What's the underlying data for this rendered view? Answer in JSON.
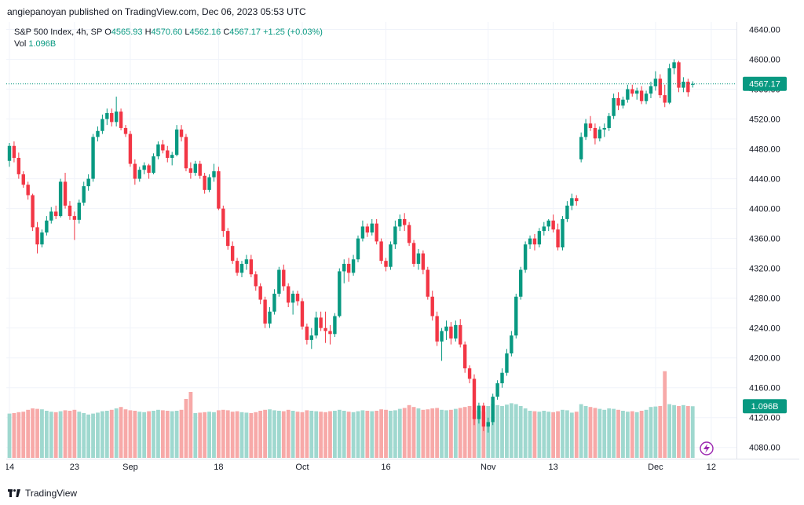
{
  "publish_line": "angiepanoyan published on TradingView.com, Dec 06, 2023 05:53 UTC",
  "legend": {
    "symbol": "S&P 500 Index, 4h, SP",
    "open_label": "O",
    "open": "4565.93",
    "high_label": "H",
    "high": "4570.60",
    "low_label": "L",
    "low": "4562.16",
    "close_label": "C",
    "close": "4567.17",
    "change": "+1.25 (+0.03%)",
    "vol_label": "Vol",
    "vol": "1.096B"
  },
  "price_badge": "4567.17",
  "vol_badge": "1.096B",
  "footer_brand": "TradingView",
  "colors": {
    "up": "#089981",
    "down": "#f23645",
    "up_vol": "#9fd8cf",
    "down_vol": "#f7a9a8"
  },
  "chart_data": {
    "type": "candlestick",
    "title": "S&P 500 Index, 4h, SP",
    "y_ticks": [
      "4640.00",
      "4600.00",
      "4560.00",
      "4520.00",
      "4480.00",
      "4440.00",
      "4400.00",
      "4360.00",
      "4320.00",
      "4280.00",
      "4240.00",
      "4200.00",
      "4160.00",
      "4120.00",
      "4080.00"
    ],
    "ylim": [
      4065,
      4650
    ],
    "x_ticks": [
      {
        "label": "14",
        "bar": 0
      },
      {
        "label": "23",
        "bar": 14
      },
      {
        "label": "Sep",
        "bar": 26
      },
      {
        "label": "18",
        "bar": 45
      },
      {
        "label": "Oct",
        "bar": 63
      },
      {
        "label": "16",
        "bar": 81
      },
      {
        "label": "Nov",
        "bar": 103
      },
      {
        "label": "13",
        "bar": 117
      },
      {
        "label": "Dec",
        "bar": 139
      },
      {
        "label": "12",
        "bar": 151
      }
    ],
    "current_price": 4567.17,
    "volume_current": "1.096B",
    "candles": [
      [
        4464,
        4488,
        4456,
        4484,
        0.94
      ],
      [
        4484,
        4490,
        4462,
        4468,
        0.95
      ],
      [
        4468,
        4475,
        4440,
        4446,
        0.97
      ],
      [
        4446,
        4450,
        4428,
        4432,
        0.98
      ],
      [
        4432,
        4436,
        4412,
        4418,
        1.02
      ],
      [
        4418,
        4420,
        4370,
        4375,
        1.05
      ],
      [
        4375,
        4382,
        4340,
        4352,
        1.04
      ],
      [
        4352,
        4372,
        4348,
        4368,
        1.03
      ],
      [
        4368,
        4390,
        4364,
        4384,
        1.0
      ],
      [
        4384,
        4402,
        4380,
        4396,
        0.98
      ],
      [
        4396,
        4404,
        4386,
        4390,
        0.97
      ],
      [
        4390,
        4440,
        4388,
        4436,
        0.99
      ],
      [
        4436,
        4448,
        4400,
        4404,
        1.01
      ],
      [
        4404,
        4410,
        4385,
        4390,
        1.0
      ],
      [
        4390,
        4396,
        4358,
        4385,
        1.02
      ],
      [
        4385,
        4412,
        4380,
        4408,
        0.98
      ],
      [
        4408,
        4436,
        4404,
        4430,
        0.95
      ],
      [
        4430,
        4446,
        4424,
        4440,
        0.92
      ],
      [
        4440,
        4500,
        4436,
        4496,
        0.94
      ],
      [
        4496,
        4510,
        4490,
        4504,
        0.96
      ],
      [
        4504,
        4526,
        4500,
        4520,
        0.99
      ],
      [
        4520,
        4534,
        4512,
        4528,
        1.0
      ],
      [
        4528,
        4534,
        4510,
        4516,
        1.02
      ],
      [
        4516,
        4550,
        4510,
        4530,
        1.05
      ],
      [
        4530,
        4534,
        4505,
        4508,
        1.08
      ],
      [
        4508,
        4512,
        4496,
        4500,
        1.03
      ],
      [
        4500,
        4504,
        4456,
        4460,
        1.01
      ],
      [
        4460,
        4466,
        4432,
        4440,
        1.0
      ],
      [
        4440,
        4456,
        4436,
        4452,
        0.98
      ],
      [
        4452,
        4462,
        4446,
        4458,
        0.97
      ],
      [
        4458,
        4460,
        4440,
        4448,
        0.99
      ],
      [
        4448,
        4474,
        4446,
        4470,
        1.0
      ],
      [
        4470,
        4490,
        4466,
        4486,
        1.02
      ],
      [
        4486,
        4492,
        4474,
        4478,
        1.01
      ],
      [
        4478,
        4484,
        4462,
        4468,
        1.0
      ],
      [
        4468,
        4476,
        4458,
        4472,
        0.99
      ],
      [
        4472,
        4512,
        4470,
        4506,
        1.0
      ],
      [
        4506,
        4512,
        4490,
        4496,
        1.02
      ],
      [
        4496,
        4500,
        4450,
        4454,
        1.25
      ],
      [
        4454,
        4462,
        4440,
        4448,
        1.4
      ],
      [
        4448,
        4464,
        4444,
        4460,
        0.95
      ],
      [
        4460,
        4464,
        4440,
        4444,
        0.96
      ],
      [
        4444,
        4448,
        4420,
        4425,
        0.97
      ],
      [
        4425,
        4446,
        4422,
        4442,
        0.98
      ],
      [
        4442,
        4460,
        4436,
        4450,
        0.97
      ],
      [
        4450,
        4456,
        4398,
        4400,
        1.01
      ],
      [
        4400,
        4404,
        4362,
        4370,
        1.02
      ],
      [
        4370,
        4374,
        4345,
        4350,
        1.01
      ],
      [
        4350,
        4356,
        4326,
        4330,
        0.98
      ],
      [
        4330,
        4334,
        4310,
        4314,
        0.99
      ],
      [
        4314,
        4330,
        4308,
        4326,
        0.97
      ],
      [
        4326,
        4338,
        4318,
        4332,
        0.96
      ],
      [
        4332,
        4338,
        4308,
        4312,
        0.95
      ],
      [
        4312,
        4316,
        4290,
        4296,
        0.97
      ],
      [
        4296,
        4300,
        4272,
        4278,
        1.0
      ],
      [
        4278,
        4282,
        4240,
        4246,
        1.02
      ],
      [
        4246,
        4268,
        4240,
        4262,
        1.03
      ],
      [
        4262,
        4292,
        4258,
        4286,
        1.01
      ],
      [
        4286,
        4322,
        4282,
        4318,
        1.0
      ],
      [
        4318,
        4325,
        4290,
        4296,
        0.99
      ],
      [
        4296,
        4300,
        4268,
        4274,
        1.02
      ],
      [
        4274,
        4290,
        4258,
        4286,
        1.0
      ],
      [
        4286,
        4290,
        4270,
        4276,
        0.98
      ],
      [
        4276,
        4280,
        4238,
        4242,
        0.97
      ],
      [
        4242,
        4246,
        4218,
        4224,
        1.01
      ],
      [
        4224,
        4240,
        4212,
        4230,
        1.0
      ],
      [
        4230,
        4262,
        4226,
        4254,
        0.99
      ],
      [
        4254,
        4262,
        4236,
        4240,
        0.98
      ],
      [
        4240,
        4262,
        4220,
        4236,
        0.97
      ],
      [
        4236,
        4244,
        4218,
        4232,
        0.99
      ],
      [
        4232,
        4260,
        4228,
        4256,
        1.0
      ],
      [
        4256,
        4320,
        4254,
        4316,
        1.02
      ],
      [
        4316,
        4332,
        4300,
        4326,
        1.0
      ],
      [
        4326,
        4334,
        4302,
        4314,
        0.98
      ],
      [
        4314,
        4338,
        4310,
        4332,
        0.97
      ],
      [
        4332,
        4364,
        4328,
        4360,
        0.99
      ],
      [
        4360,
        4384,
        4356,
        4376,
        1.01
      ],
      [
        4376,
        4380,
        4362,
        4368,
        1.0
      ],
      [
        4368,
        4386,
        4364,
        4380,
        0.99
      ],
      [
        4380,
        4386,
        4352,
        4356,
        1.0
      ],
      [
        4356,
        4360,
        4326,
        4330,
        1.03
      ],
      [
        4330,
        4334,
        4316,
        4322,
        1.02
      ],
      [
        4322,
        4356,
        4318,
        4352,
        1.0
      ],
      [
        4352,
        4384,
        4346,
        4376,
        1.01
      ],
      [
        4376,
        4392,
        4370,
        4386,
        1.04
      ],
      [
        4386,
        4394,
        4370,
        4378,
        1.06
      ],
      [
        4378,
        4382,
        4350,
        4354,
        1.12
      ],
      [
        4354,
        4358,
        4322,
        4326,
        1.08
      ],
      [
        4326,
        4346,
        4318,
        4340,
        1.05
      ],
      [
        4340,
        4344,
        4312,
        4318,
        1.02
      ],
      [
        4318,
        4322,
        4278,
        4282,
        1.03
      ],
      [
        4282,
        4290,
        4250,
        4256,
        1.05
      ],
      [
        4256,
        4262,
        4216,
        4222,
        1.06
      ],
      [
        4222,
        4240,
        4196,
        4236,
        1.02
      ],
      [
        4236,
        4250,
        4224,
        4242,
        1.01
      ],
      [
        4242,
        4248,
        4218,
        4226,
        1.02
      ],
      [
        4226,
        4250,
        4222,
        4244,
        1.04
      ],
      [
        4244,
        4252,
        4214,
        4218,
        1.06
      ],
      [
        4218,
        4222,
        4180,
        4186,
        1.08
      ],
      [
        4186,
        4190,
        4166,
        4172,
        1.1
      ],
      [
        4172,
        4178,
        4110,
        4118,
        1.02
      ],
      [
        4118,
        4140,
        4112,
        4136,
        1.0
      ],
      [
        4136,
        4140,
        4102,
        4108,
        0.98
      ],
      [
        4108,
        4120,
        4100,
        4114,
        1.1
      ],
      [
        4114,
        4152,
        4110,
        4148,
        1.15
      ],
      [
        4148,
        4170,
        4144,
        4166,
        1.12
      ],
      [
        4166,
        4186,
        4160,
        4180,
        1.1
      ],
      [
        4180,
        4212,
        4176,
        4206,
        1.13
      ],
      [
        4206,
        4236,
        4202,
        4230,
        1.16
      ],
      [
        4230,
        4286,
        4226,
        4282,
        1.14
      ],
      [
        4282,
        4322,
        4278,
        4318,
        1.1
      ],
      [
        4318,
        4356,
        4314,
        4352,
        1.05
      ],
      [
        4352,
        4364,
        4346,
        4360,
        1.0
      ],
      [
        4360,
        4366,
        4344,
        4352,
        0.99
      ],
      [
        4352,
        4374,
        4348,
        4370,
        0.98
      ],
      [
        4370,
        4382,
        4364,
        4376,
        1.0
      ],
      [
        4376,
        4386,
        4370,
        4384,
        0.98
      ],
      [
        4384,
        4392,
        4368,
        4372,
        0.97
      ],
      [
        4372,
        4380,
        4344,
        4348,
        0.99
      ],
      [
        4348,
        4390,
        4344,
        4386,
        1.02
      ],
      [
        4386,
        4410,
        4382,
        4404,
        1.01
      ],
      [
        4404,
        4420,
        4398,
        4414,
        0.96
      ],
      [
        4414,
        4418,
        4404,
        4410,
        0.98
      ],
      [
        4466,
        4502,
        4462,
        4496,
        1.14
      ],
      [
        4496,
        4520,
        4492,
        4514,
        1.1
      ],
      [
        4514,
        4524,
        4504,
        4508,
        1.08
      ],
      [
        4508,
        4514,
        4486,
        4494,
        1.06
      ],
      [
        4494,
        4510,
        4490,
        4506,
        1.04
      ],
      [
        4506,
        4514,
        4496,
        4508,
        1.02
      ],
      [
        4508,
        4528,
        4504,
        4524,
        1.05
      ],
      [
        4524,
        4554,
        4520,
        4548,
        1.04
      ],
      [
        4548,
        4556,
        4532,
        4538,
        1.02
      ],
      [
        4538,
        4550,
        4534,
        4546,
        1.0
      ],
      [
        4546,
        4566,
        4542,
        4560,
        0.98
      ],
      [
        4560,
        4566,
        4550,
        4554,
        0.99
      ],
      [
        4554,
        4562,
        4546,
        4558,
        0.97
      ],
      [
        4558,
        4564,
        4540,
        4544,
        1.0
      ],
      [
        4544,
        4558,
        4540,
        4554,
        1.02
      ],
      [
        4554,
        4570,
        4548,
        4564,
        1.08
      ],
      [
        4564,
        4584,
        4558,
        4574,
        1.09
      ],
      [
        4574,
        4580,
        4548,
        4552,
        1.1
      ],
      [
        4552,
        4566,
        4536,
        4542,
        1.84
      ],
      [
        4542,
        4594,
        4540,
        4588,
        1.14
      ],
      [
        4588,
        4600,
        4580,
        4596,
        1.12
      ],
      [
        4596,
        4598,
        4556,
        4562,
        1.1
      ],
      [
        4562,
        4576,
        4556,
        4570,
        1.12
      ],
      [
        4570,
        4574,
        4550,
        4556,
        1.1
      ],
      [
        4565.93,
        4570.6,
        4562.16,
        4567.17,
        1.096
      ]
    ]
  }
}
